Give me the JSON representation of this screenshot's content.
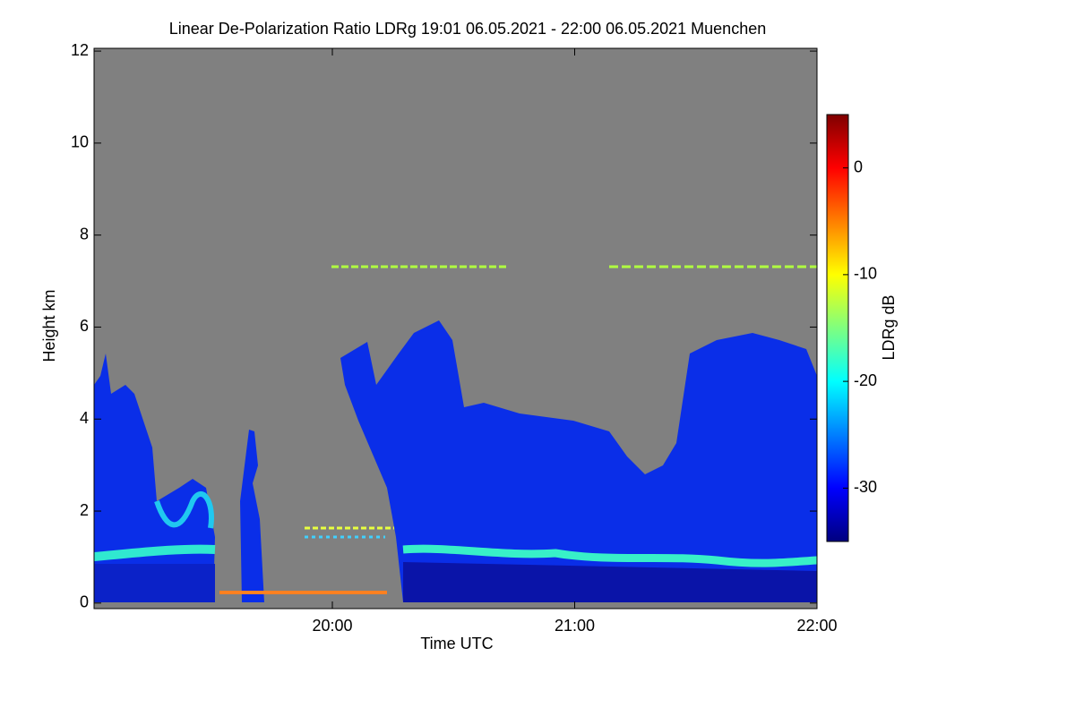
{
  "chart_data": {
    "type": "heatmap",
    "title": "Linear De-Polarization Ratio LDRg   19:01 06.05.2021 - 22:00 06.05.2021 Muenchen",
    "xlabel": "Time UTC",
    "ylabel": "Height km",
    "colorbar_label": "LDRg dB",
    "xlim": [
      19.0167,
      22.0
    ],
    "xticks": [
      {
        "value": 20,
        "label": "20:00"
      },
      {
        "value": 21,
        "label": "21:00"
      },
      {
        "value": 22,
        "label": "22:00"
      }
    ],
    "ylim": [
      -0.12,
      12.06
    ],
    "yticks": [
      0,
      2,
      4,
      6,
      8,
      10,
      12
    ],
    "clim": [
      -35,
      5
    ],
    "cticks": [
      0,
      -10,
      -20,
      -30
    ],
    "colormap": [
      "#00007f",
      "#0000ff",
      "#007fff",
      "#00ffff",
      "#7fff7f",
      "#ffff00",
      "#ff7f00",
      "#ff0000",
      "#7f0000"
    ],
    "no_data_color": "#808080"
  }
}
